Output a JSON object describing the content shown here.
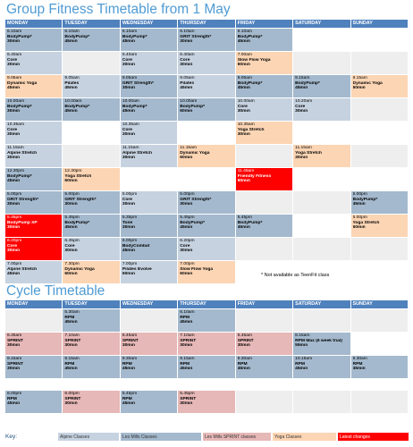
{
  "colors": {
    "header": "#4f81bd",
    "title": "#4f9bd3",
    "alpine": "#c6d2e0",
    "lesmills": "#a4b9cd",
    "sprint": "#e6b8b7",
    "yoga": "#fcd5b4",
    "latest": "#ff0000",
    "empty_alt": "#eeeeee"
  },
  "titles": {
    "group": "Group Fitness Timetable from 1 May",
    "cycle": "Cycle Timetable"
  },
  "days": [
    "MONDAY",
    "TUESDAY",
    "WEDNESDAY",
    "THURSDAY",
    "FRIDAY",
    "SATURDAY",
    "SUNDAY"
  ],
  "note": "* Not available as TeenFit class",
  "key": {
    "label": "Key:",
    "items": [
      {
        "label": "Alpine Classes",
        "type": "alpine"
      },
      {
        "label": "Les Mills Classes",
        "type": "lesmills"
      },
      {
        "label": "Les Mills SPRINT classes",
        "type": "sprint"
      },
      {
        "label": "Yoga Classes",
        "type": "yoga"
      },
      {
        "label": "Latest changes",
        "type": "latest"
      }
    ]
  },
  "group_rows": [
    [
      {
        "type": "lesmills",
        "time": "6.10am",
        "name": "BodyPump*",
        "dur": "30min"
      },
      {
        "type": "lesmills",
        "time": "6.10am",
        "name": "BodyPump*",
        "dur": "45min"
      },
      {
        "type": "lesmills",
        "time": "6.10am",
        "name": "BodyPump*",
        "dur": "45min"
      },
      {
        "type": "lesmills",
        "time": "6.10am",
        "name": "GRIT Strength*",
        "dur": "30min"
      },
      {
        "type": "lesmills",
        "time": "6.10am",
        "name": "BodyPump*",
        "dur": "45min"
      },
      {
        "type": "empty-light"
      },
      {
        "type": "empty-light"
      }
    ],
    [
      {
        "type": "alpine",
        "time": "6.40am",
        "name": "Core",
        "dur": "30min"
      },
      {
        "type": "empty-alt"
      },
      {
        "type": "alpine",
        "time": "6.40am",
        "name": "Core",
        "dur": "30min"
      },
      {
        "type": "alpine",
        "time": "6.40am",
        "name": "Core",
        "dur": "30min"
      },
      {
        "type": "yoga",
        "time": "7.00am",
        "name": "Slow Flow Yoga",
        "dur": "60min"
      },
      {
        "type": "empty-alt"
      },
      {
        "type": "empty-alt"
      }
    ],
    [
      {
        "type": "yoga",
        "time": "9.05am",
        "name": "Dynamic Yoga",
        "dur": "45min"
      },
      {
        "type": "alpine",
        "time": "9.05am",
        "name": "Pilates",
        "dur": "45min"
      },
      {
        "type": "lesmills",
        "time": "9.05am",
        "name": "GRIT Strength*",
        "dur": "30min"
      },
      {
        "type": "alpine",
        "time": "9.05am",
        "name": "Pilates",
        "dur": "45min"
      },
      {
        "type": "lesmills",
        "time": "9.05am",
        "name": "BodyPump*",
        "dur": "45min"
      },
      {
        "type": "lesmills",
        "time": "9.15am",
        "name": "BodyPump*",
        "dur": "45min"
      },
      {
        "type": "yoga",
        "time": "9.15am",
        "name": "Dynamic Yoga",
        "dur": "60min"
      }
    ],
    [
      {
        "type": "lesmills",
        "time": "10.00am",
        "name": "BodyPump*",
        "dur": "30min"
      },
      {
        "type": "lesmills",
        "time": "10.00am",
        "name": "BodyPump*",
        "dur": "45min"
      },
      {
        "type": "lesmills",
        "time": "10.00am",
        "name": "BodyPump*",
        "dur": "45min"
      },
      {
        "type": "lesmills",
        "time": "10.00am",
        "name": "BodyPump*",
        "dur": "60min"
      },
      {
        "type": "alpine",
        "time": "10.00am",
        "name": "Core",
        "dur": "30min"
      },
      {
        "type": "alpine",
        "time": "10.20am",
        "name": "Core",
        "dur": "30min"
      },
      {
        "type": "empty-alt"
      }
    ],
    [
      {
        "type": "alpine",
        "time": "10.35am",
        "name": "Core",
        "dur": "30min"
      },
      {
        "type": "empty-light"
      },
      {
        "type": "alpine",
        "time": "10.35am",
        "name": "Core",
        "dur": "30min"
      },
      {
        "type": "empty-light"
      },
      {
        "type": "yoga",
        "time": "10.35am",
        "name": "Yoga Stretch",
        "dur": "30min"
      },
      {
        "type": "empty-light"
      },
      {
        "type": "empty-light"
      }
    ],
    [
      {
        "type": "alpine",
        "time": "11.15am",
        "name": "Alpine Stretch",
        "dur": "30min"
      },
      {
        "type": "empty-alt"
      },
      {
        "type": "alpine",
        "time": "11.15am",
        "name": "Alpine Stretch",
        "dur": "30min"
      },
      {
        "type": "yoga",
        "time": "11.15am",
        "name": "Dynamic Yoga",
        "dur": "60min"
      },
      {
        "type": "empty-alt"
      },
      {
        "type": "yoga",
        "time": "11.15am",
        "name": "Yoga Stretch",
        "dur": "30min"
      },
      {
        "type": "empty-alt"
      }
    ],
    [
      {
        "type": "lesmills",
        "time": "12.30pm",
        "name": "BodyPump*",
        "dur": "45min"
      },
      {
        "type": "yoga",
        "time": "12.30pm",
        "name": "Yoga Stretch",
        "dur": "60min"
      },
      {
        "type": "empty-light"
      },
      {
        "type": "empty-light"
      },
      {
        "type": "latest",
        "time": "11.45am",
        "name": "Friendly Fitness",
        "dur": "60min"
      },
      {
        "type": "empty-light"
      },
      {
        "type": "empty-light"
      }
    ],
    [
      {
        "type": "lesmills",
        "time": "5.00pm",
        "name": "GRIT Strength*",
        "dur": "30min"
      },
      {
        "type": "lesmills",
        "time": "5.00pm",
        "name": "GRIT Strength*",
        "dur": "30min"
      },
      {
        "type": "alpine",
        "time": "5.00pm",
        "name": "Core",
        "dur": "30min"
      },
      {
        "type": "lesmills",
        "time": "5.00pm",
        "name": "GRIT Strength*",
        "dur": "30min"
      },
      {
        "type": "empty-alt"
      },
      {
        "type": "empty-alt"
      },
      {
        "type": "lesmills",
        "time": "5.00pm",
        "name": "BodyPump*",
        "dur": "45min"
      }
    ],
    [
      {
        "type": "latest",
        "time": "5.45pm",
        "name": "BodyPump XP",
        "dur": "30min"
      },
      {
        "type": "lesmills",
        "time": "5.45pm",
        "name": "BodyPump*",
        "dur": "45min"
      },
      {
        "type": "lesmills",
        "time": "5.35pm",
        "name": "Tone",
        "dur": "30min"
      },
      {
        "type": "lesmills",
        "time": "5.45pm",
        "name": "BodyPump*",
        "dur": "45min"
      },
      {
        "type": "lesmills",
        "time": "5.45pm",
        "name": "BodyPump*",
        "dur": "45min"
      },
      {
        "type": "empty-light"
      },
      {
        "type": "yoga",
        "time": "6.00pm",
        "name": "Yoga Stretch",
        "dur": "60min"
      }
    ],
    [
      {
        "type": "latest",
        "time": "6.20pm",
        "name": "Core",
        "dur": "30min"
      },
      {
        "type": "alpine",
        "time": "6.45pm",
        "name": "Core",
        "dur": "30min"
      },
      {
        "type": "lesmills",
        "time": "6.00pm",
        "name": "BodyCombat",
        "dur": "45min"
      },
      {
        "type": "alpine",
        "time": "6.20pm",
        "name": "Core",
        "dur": "30min"
      },
      {
        "type": "empty-alt"
      },
      {
        "type": "empty-alt"
      },
      {
        "type": "empty-alt"
      }
    ],
    [
      {
        "type": "alpine",
        "time": "7.00pm",
        "name": "Alpine Stretch",
        "dur": "45min"
      },
      {
        "type": "yoga",
        "time": "7.30pm",
        "name": "Dynamic Yoga",
        "dur": "60min"
      },
      {
        "type": "alpine",
        "time": "7.00pm",
        "name": "Pilates Evolve",
        "dur": "60min"
      },
      {
        "type": "yoga",
        "time": "7.00pm",
        "name": "Slow Flow Yoga",
        "dur": "60min"
      },
      {
        "type": "empty-light"
      },
      {
        "type": "empty-light"
      },
      {
        "type": "empty-light"
      }
    ]
  ],
  "cycle_rows": [
    [
      {
        "type": "empty-alt"
      },
      {
        "type": "lesmills",
        "time": "5.30am",
        "name": "RPM",
        "dur": "45min"
      },
      {
        "type": "empty-alt"
      },
      {
        "type": "lesmills",
        "time": "6.10am",
        "name": "RPM",
        "dur": "45min"
      },
      {
        "type": "empty-alt"
      },
      {
        "type": "empty-alt"
      },
      {
        "type": "empty-alt"
      }
    ],
    [
      {
        "type": "sprint",
        "time": "6.45am",
        "name": "SPRINT",
        "dur": "30min"
      },
      {
        "type": "sprint",
        "time": "7.10am",
        "name": "SPRINT",
        "dur": "30min"
      },
      {
        "type": "sprint",
        "time": "6.45am",
        "name": "SPRINT",
        "dur": "30min"
      },
      {
        "type": "sprint",
        "time": "7.10am",
        "name": "SPRINT",
        "dur": "30min"
      },
      {
        "type": "sprint",
        "time": "6.45am",
        "name": "SPRINT",
        "dur": "30min"
      },
      {
        "type": "lesmills",
        "time": "8.15am",
        "name": "RPM Max (6 week trial)",
        "dur": "55min"
      },
      {
        "type": "empty-light"
      }
    ],
    [
      {
        "type": "lesmills",
        "time": "9.15am",
        "name": "SPRINT",
        "dur": "30min"
      },
      {
        "type": "lesmills",
        "time": "9.15am",
        "name": "RPM",
        "dur": "45min"
      },
      {
        "type": "lesmills",
        "time": "9.30am",
        "name": "RPM",
        "dur": "45min"
      },
      {
        "type": "lesmills",
        "time": "9.15am",
        "name": "RPM",
        "dur": "45min"
      },
      {
        "type": "lesmills",
        "time": "9.30am",
        "name": "RPM",
        "dur": "45min"
      },
      {
        "type": "lesmills",
        "time": "10.15am",
        "name": "RPM",
        "dur": "45min"
      },
      {
        "type": "lesmills",
        "time": "9.30am",
        "name": "RPM",
        "dur": "45min"
      }
    ],
    [
      {
        "type": "empty-light"
      },
      {
        "type": "empty-light"
      },
      {
        "type": "empty-light"
      },
      {
        "type": "empty-light"
      },
      {
        "type": "empty-light"
      },
      {
        "type": "empty-light"
      },
      {
        "type": "empty-light"
      }
    ],
    [
      {
        "type": "lesmills",
        "time": "6.00pm",
        "name": "RPM",
        "dur": "45min"
      },
      {
        "type": "sprint",
        "time": "6.00pm",
        "name": "SPRINT",
        "dur": "30min"
      },
      {
        "type": "lesmills",
        "time": "5.45pm",
        "name": "RPM",
        "dur": "45min"
      },
      {
        "type": "sprint",
        "time": "5.45pm",
        "name": "SPRINT",
        "dur": "30min"
      },
      {
        "type": "empty-alt"
      },
      {
        "type": "empty-alt"
      },
      {
        "type": "empty-alt"
      }
    ]
  ]
}
